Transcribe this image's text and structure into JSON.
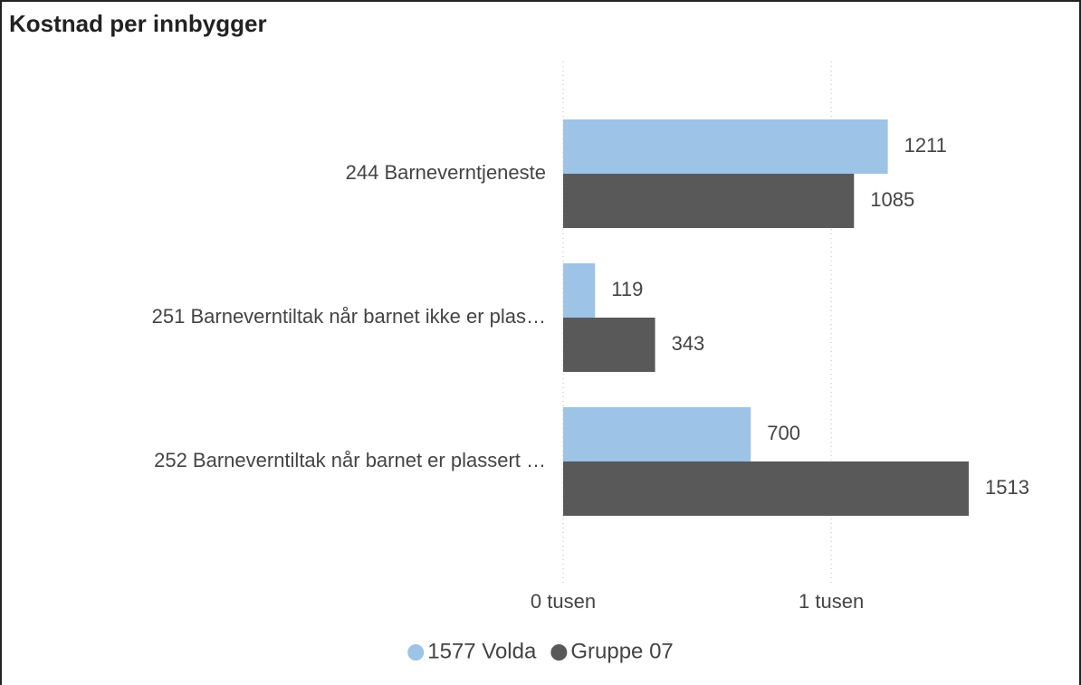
{
  "chart_data": {
    "type": "bar",
    "orientation": "horizontal",
    "title": "Kostnad per innbygger",
    "categories": [
      "244 Barneverntjeneste",
      "251 Barneverntiltak når barnet ikke er plas…",
      "252 Barneverntiltak når barnet er plassert …"
    ],
    "series": [
      {
        "name": "1577 Volda",
        "color": "#9dc3e6",
        "values": [
          1211,
          119,
          700
        ]
      },
      {
        "name": "Gruppe 07",
        "color": "#595959",
        "values": [
          1085,
          343,
          1513
        ]
      }
    ],
    "xlim": [
      0,
      1800
    ],
    "xticks": [
      {
        "value": 0,
        "label": "0 tusen"
      },
      {
        "value": 1000,
        "label": "1 tusen"
      }
    ],
    "grid": true,
    "legend": "bottom"
  }
}
